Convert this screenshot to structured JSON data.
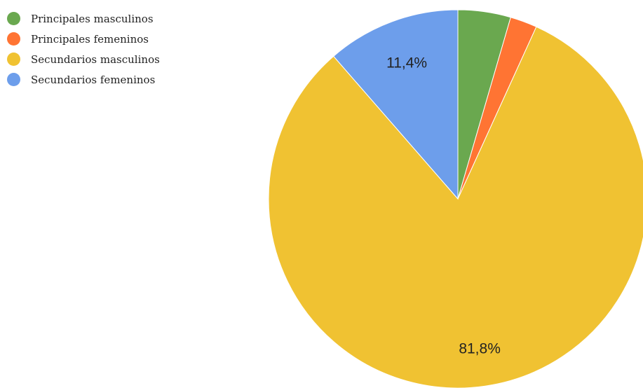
{
  "chart_data": {
    "type": "pie",
    "categories": [
      "Principales masculinos",
      "Principales femeninos",
      "Secundarios masculinos",
      "Secundarios femeninos"
    ],
    "values": [
      4.5,
      2.3,
      81.8,
      11.4
    ],
    "colors": [
      "#6aa84f",
      "#ff7433",
      "#f0c232",
      "#6d9eeb"
    ],
    "data_labels": [
      "",
      "",
      "81,8%",
      "11,4%"
    ],
    "legend_position": "left"
  }
}
